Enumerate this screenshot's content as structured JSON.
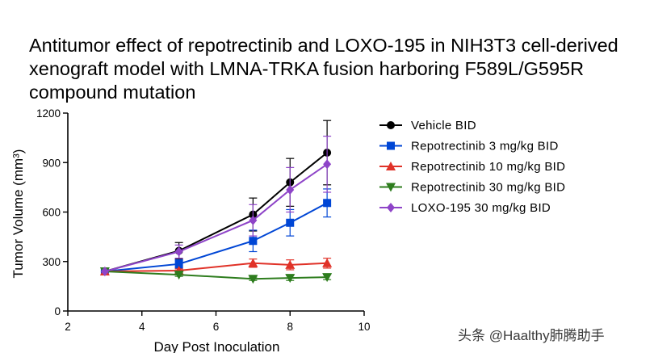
{
  "chart_data": {
    "type": "line",
    "title": "Antitumor effect of repotrectinib and LOXO-195 in NIH3T3 cell-derived xenograft model with LMNA-TRKA fusion harboring F589L/G595R compound mutation",
    "xlabel": "Day Post Inoculation",
    "ylabel": "Tumor Volume (mm³)",
    "xlim": [
      2,
      10
    ],
    "ylim": [
      0,
      1200
    ],
    "xticks": [
      2,
      4,
      6,
      8,
      10
    ],
    "yticks": [
      0,
      300,
      600,
      900,
      1200
    ],
    "x": [
      3,
      5,
      7,
      8,
      9
    ],
    "legend_position": "right",
    "series": [
      {
        "name": "Vehicle BID",
        "color": "#000000",
        "marker": "circle",
        "values": [
          240,
          365,
          585,
          780,
          960
        ],
        "errors": [
          0,
          50,
          100,
          145,
          195
        ]
      },
      {
        "name": "Repotrectinib 3 mg/kg BID",
        "color": "#0046d5",
        "marker": "square",
        "values": [
          240,
          285,
          425,
          535,
          655
        ],
        "errors": [
          0,
          25,
          65,
          80,
          85
        ]
      },
      {
        "name": "Repotrectinib 10 mg/kg BID",
        "color": "#e03228",
        "marker": "triangle-up",
        "values": [
          240,
          245,
          290,
          280,
          290
        ],
        "errors": [
          0,
          10,
          25,
          30,
          30
        ]
      },
      {
        "name": "Repotrectinib 30 mg/kg BID",
        "color": "#2e7d1e",
        "marker": "triangle-down",
        "values": [
          240,
          220,
          195,
          200,
          205
        ],
        "errors": [
          0,
          10,
          10,
          15,
          15
        ]
      },
      {
        "name": "LOXO-195 30 mg/kg BID",
        "color": "#8e44c8",
        "marker": "diamond",
        "values": [
          240,
          360,
          550,
          735,
          890
        ],
        "errors": [
          0,
          40,
          95,
          135,
          170
        ]
      }
    ]
  },
  "watermark": "头条 @Haalthy肺腾助手"
}
